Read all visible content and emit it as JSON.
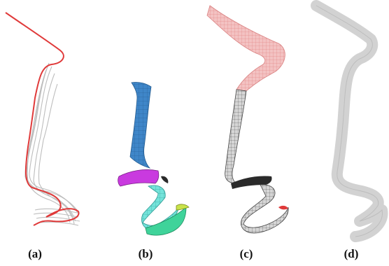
{
  "figure": {
    "panels": [
      {
        "id": "a",
        "label": "(a)"
      },
      {
        "id": "b",
        "label": "(b)"
      },
      {
        "id": "c",
        "label": "(c)"
      },
      {
        "id": "d",
        "label": "(d)"
      }
    ]
  },
  "colors": {
    "stroke_gray": "#b8b8b8",
    "curve_red": "#e03a3a",
    "patch_blue": "#3f86c8",
    "patch_magenta": "#c93adf",
    "patch_cyan": "#6fe0d8",
    "patch_green": "#3fd39a",
    "patch_yellow": "#c9e34a",
    "surface_pink": "#f2b7b7",
    "surface_dark": "#2a2a2a",
    "surface_gray": "#cfcfcf"
  }
}
